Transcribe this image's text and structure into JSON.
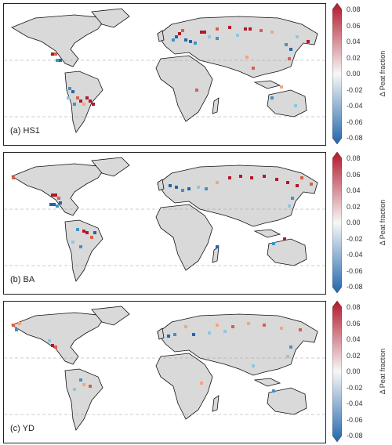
{
  "colorbar": {
    "title": "Δ Peat fraction",
    "ticks": [
      "0.08",
      "0.06",
      "0.04",
      "0.02",
      "0.00",
      "-0.02",
      "-0.04",
      "-0.06",
      "-0.08"
    ],
    "colors": {
      "max": "#b2182b",
      "mid": "#f7f7f7",
      "min": "#2166ac"
    }
  },
  "land_color": "#d9d9d9",
  "coast_color": "#000000",
  "panels": [
    {
      "label": "(a) HS1"
    },
    {
      "label": "(b) BA"
    },
    {
      "label": "(c) YD"
    }
  ]
}
